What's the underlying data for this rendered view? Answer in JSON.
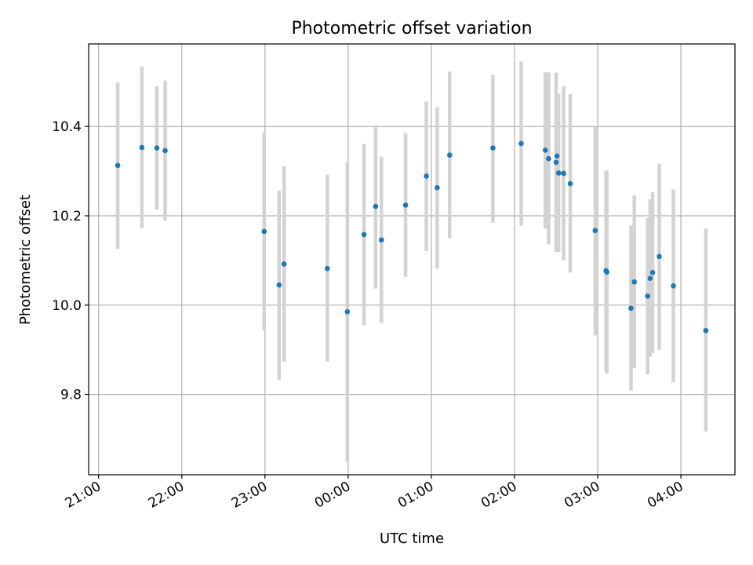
{
  "chart_data": {
    "type": "scatter",
    "title": "Photometric offset variation",
    "xlabel": "UTC time",
    "ylabel": "Photometric offset",
    "x_unit": "hours since 00:00 UTC (times before 00:00 are from the previous day)",
    "xlim": [
      -3.12,
      4.65
    ],
    "ylim": [
      9.62,
      10.585
    ],
    "x_ticks": [
      {
        "value": -3,
        "label": "21:00"
      },
      {
        "value": -2,
        "label": "22:00"
      },
      {
        "value": -1,
        "label": "23:00"
      },
      {
        "value": 0,
        "label": "00:00"
      },
      {
        "value": 1,
        "label": "01:00"
      },
      {
        "value": 2,
        "label": "02:00"
      },
      {
        "value": 3,
        "label": "03:00"
      },
      {
        "value": 4,
        "label": "04:00"
      }
    ],
    "y_ticks": [
      {
        "value": 9.8,
        "label": "9.8"
      },
      {
        "value": 10.0,
        "label": "10.0"
      },
      {
        "value": 10.2,
        "label": "10.2"
      },
      {
        "value": 10.4,
        "label": "10.4"
      }
    ],
    "grid": true,
    "colors": {
      "points": "#1f77b4",
      "errorbars": "#d3d3d3",
      "grid": "#b0b0b0"
    },
    "series": [
      {
        "points": [
          {
            "x": -2.77,
            "y": 10.313,
            "ylow": 10.126,
            "yhigh": 10.498
          },
          {
            "x": -2.48,
            "y": 10.353,
            "ylow": 10.172,
            "yhigh": 10.534
          },
          {
            "x": -2.3,
            "y": 10.352,
            "ylow": 10.214,
            "yhigh": 10.49
          },
          {
            "x": -2.2,
            "y": 10.346,
            "ylow": 10.189,
            "yhigh": 10.503
          },
          {
            "x": -1.01,
            "y": 10.165,
            "ylow": 9.943,
            "yhigh": 10.387
          },
          {
            "x": -0.83,
            "y": 10.045,
            "ylow": 9.833,
            "yhigh": 10.256
          },
          {
            "x": -0.77,
            "y": 10.092,
            "ylow": 9.873,
            "yhigh": 10.311
          },
          {
            "x": -0.25,
            "y": 10.082,
            "ylow": 9.873,
            "yhigh": 10.292
          },
          {
            "x": -0.01,
            "y": 9.985,
            "ylow": 9.649,
            "yhigh": 10.321
          },
          {
            "x": 0.19,
            "y": 10.158,
            "ylow": 9.955,
            "yhigh": 10.361
          },
          {
            "x": 0.33,
            "y": 10.221,
            "ylow": 10.037,
            "yhigh": 10.403
          },
          {
            "x": 0.4,
            "y": 10.146,
            "ylow": 9.96,
            "yhigh": 10.332
          },
          {
            "x": 0.69,
            "y": 10.224,
            "ylow": 10.063,
            "yhigh": 10.385
          },
          {
            "x": 0.94,
            "y": 10.289,
            "ylow": 10.121,
            "yhigh": 10.456
          },
          {
            "x": 1.07,
            "y": 10.263,
            "ylow": 10.082,
            "yhigh": 10.443
          },
          {
            "x": 1.22,
            "y": 10.336,
            "ylow": 10.15,
            "yhigh": 10.523
          },
          {
            "x": 1.74,
            "y": 10.352,
            "ylow": 10.185,
            "yhigh": 10.516
          },
          {
            "x": 2.08,
            "y": 10.362,
            "ylow": 10.178,
            "yhigh": 10.546
          },
          {
            "x": 2.37,
            "y": 10.347,
            "ylow": 10.171,
            "yhigh": 10.522
          },
          {
            "x": 2.41,
            "y": 10.328,
            "ylow": 10.136,
            "yhigh": 10.521
          },
          {
            "x": 2.5,
            "y": 10.32,
            "ylow": 10.119,
            "yhigh": 10.521
          },
          {
            "x": 2.51,
            "y": 10.334,
            "ylow": 10.197,
            "yhigh": 10.471
          },
          {
            "x": 2.53,
            "y": 10.296,
            "ylow": 10.119,
            "yhigh": 10.473
          },
          {
            "x": 2.59,
            "y": 10.295,
            "ylow": 10.1,
            "yhigh": 10.491
          },
          {
            "x": 2.67,
            "y": 10.272,
            "ylow": 10.073,
            "yhigh": 10.473
          },
          {
            "x": 2.97,
            "y": 10.167,
            "ylow": 9.932,
            "yhigh": 10.399
          },
          {
            "x": 3.1,
            "y": 10.077,
            "ylow": 9.853,
            "yhigh": 10.301
          },
          {
            "x": 3.11,
            "y": 10.074,
            "ylow": 9.847,
            "yhigh": 10.302
          },
          {
            "x": 3.4,
            "y": 9.993,
            "ylow": 9.809,
            "yhigh": 10.178
          },
          {
            "x": 3.44,
            "y": 10.052,
            "ylow": 9.859,
            "yhigh": 10.246
          },
          {
            "x": 3.6,
            "y": 10.02,
            "ylow": 9.845,
            "yhigh": 10.195
          },
          {
            "x": 3.63,
            "y": 10.06,
            "ylow": 9.885,
            "yhigh": 10.237
          },
          {
            "x": 3.66,
            "y": 10.073,
            "ylow": 9.893,
            "yhigh": 10.253
          },
          {
            "x": 3.74,
            "y": 10.109,
            "ylow": 9.9,
            "yhigh": 10.317
          },
          {
            "x": 3.91,
            "y": 10.043,
            "ylow": 9.827,
            "yhigh": 10.259
          },
          {
            "x": 4.3,
            "y": 9.943,
            "ylow": 9.717,
            "yhigh": 10.171
          }
        ]
      }
    ]
  }
}
